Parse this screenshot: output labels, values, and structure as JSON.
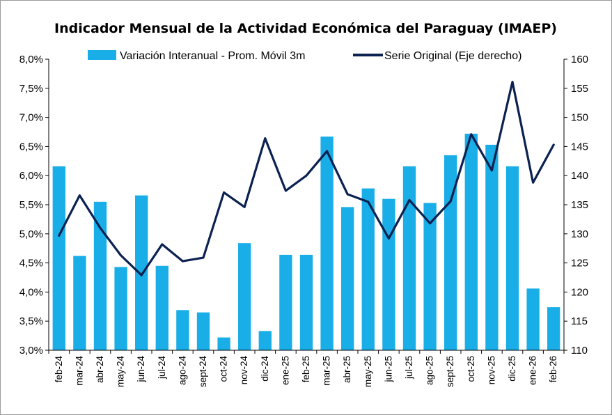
{
  "chart_data": {
    "type": "bar+line",
    "title": "Indicador Mensual de la Actividad Económica del Paraguay (IMAEP)",
    "categories": [
      "feb-24",
      "mar-24",
      "abr-24",
      "may-24",
      "jun-24",
      "jul-24",
      "ago-24",
      "sept-24",
      "oct-24",
      "nov-24",
      "dic-24",
      "ene-25",
      "feb-25",
      "mar-25",
      "abr-25",
      "may-25",
      "jun-25",
      "jul-25",
      "ago-25",
      "sept-25",
      "oct-25",
      "nov-25",
      "dic-25",
      "ene-26",
      "feb-26"
    ],
    "series": [
      {
        "name": "Variación Interanual - Prom. Móvil 3m",
        "kind": "bar",
        "axis": "left",
        "color": "#1AAEE8",
        "values": [
          6.16,
          4.62,
          5.55,
          4.43,
          5.66,
          4.45,
          3.69,
          3.65,
          3.22,
          4.84,
          3.33,
          4.64,
          4.64,
          6.67,
          5.46,
          5.78,
          5.6,
          6.16,
          5.53,
          6.35,
          6.72,
          6.53,
          6.16,
          4.06,
          3.74
        ]
      },
      {
        "name": "Serie Original (Eje derecho)",
        "kind": "line",
        "axis": "right",
        "color": "#0B2150",
        "values": [
          129.7,
          136.6,
          131.0,
          126.3,
          122.9,
          128.2,
          125.3,
          125.9,
          137.1,
          134.6,
          146.4,
          137.4,
          140.0,
          144.2,
          136.8,
          135.5,
          129.2,
          135.8,
          131.8,
          135.6,
          147.1,
          140.9,
          156.1,
          138.8,
          145.3
        ]
      }
    ],
    "y_left": {
      "min": 3.0,
      "max": 8.0,
      "ticks": [
        "3,0%",
        "3,5%",
        "4,0%",
        "4,5%",
        "5,0%",
        "5,5%",
        "6,0%",
        "6,5%",
        "7,0%",
        "7,5%",
        "8,0%"
      ]
    },
    "y_right": {
      "min": 110,
      "max": 160,
      "ticks": [
        "110",
        "115",
        "120",
        "125",
        "130",
        "135",
        "140",
        "145",
        "150",
        "155",
        "160"
      ]
    },
    "grid": false,
    "legend_position": "top"
  }
}
